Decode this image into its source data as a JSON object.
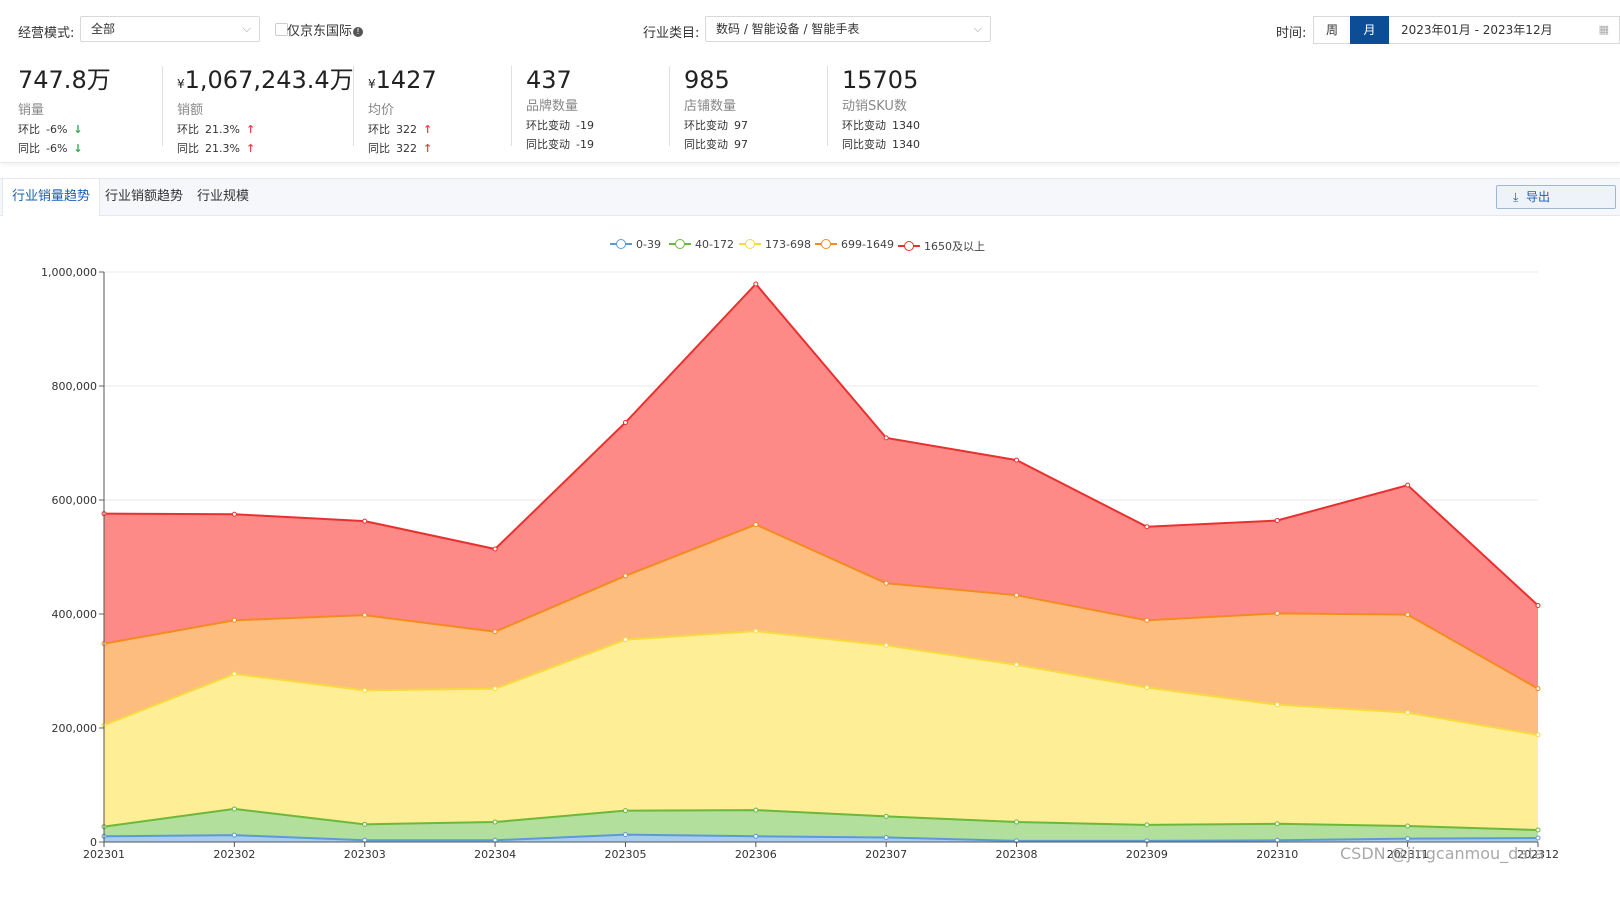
{
  "filters": {
    "mode_label": "经营模式:",
    "mode_value": "全部",
    "jd_intl_label": "仅京东国际",
    "category_label": "行业类目:",
    "category_value": "数码 / 智能设备 / 智能手表",
    "time_label": "时间:",
    "week_label": "周",
    "month_label": "月",
    "date_range": "2023年01月 - 2023年12月"
  },
  "metrics": [
    {
      "value": "747.8万",
      "currency": "",
      "name": "销量",
      "r1_label": "环比",
      "r1_value": "-6%",
      "r1_arrow": "↓",
      "r2_label": "同比",
      "r2_value": "-6%",
      "r2_arrow": "↓"
    },
    {
      "value": "1,067,243.4万",
      "currency": "¥",
      "name": "销额",
      "r1_label": "环比",
      "r1_value": "21.3%",
      "r1_arrow": "↑",
      "r2_label": "同比",
      "r2_value": "21.3%",
      "r2_arrow": "↑"
    },
    {
      "value": "1427",
      "currency": "¥",
      "name": "均价",
      "r1_label": "环比",
      "r1_value": "322",
      "r1_arrow": "↑",
      "r2_label": "同比",
      "r2_value": "322",
      "r2_arrow": "↑"
    },
    {
      "value": "437",
      "currency": "",
      "name": "品牌数量",
      "r1_label": "环比变动",
      "r1_value": "-19",
      "r1_arrow": "",
      "r2_label": "同比变动",
      "r2_value": "-19",
      "r2_arrow": ""
    },
    {
      "value": "985",
      "currency": "",
      "name": "店铺数量",
      "r1_label": "环比变动",
      "r1_value": "97",
      "r1_arrow": "",
      "r2_label": "同比变动",
      "r2_value": "97",
      "r2_arrow": ""
    },
    {
      "value": "15705",
      "currency": "",
      "name": "动销SKU数",
      "r1_label": "环比变动",
      "r1_value": "1340",
      "r1_arrow": "",
      "r2_label": "同比变动",
      "r2_value": "1340",
      "r2_arrow": ""
    }
  ],
  "tabs": [
    "行业销量趋势",
    "行业销额趋势",
    "行业规模"
  ],
  "export_label": "导出",
  "watermark": "CSDN @jingcanmou_data",
  "chart_data": {
    "type": "area",
    "stacked": true,
    "title": "",
    "categories": [
      "202301",
      "202302",
      "202303",
      "202304",
      "202305",
      "202306",
      "202307",
      "202308",
      "202309",
      "202310",
      "202311",
      "202312"
    ],
    "ylim": [
      0,
      1000000
    ],
    "yticks": [
      0,
      200000,
      400000,
      600000,
      800000,
      1000000
    ],
    "ytick_labels": [
      "0",
      "200,000",
      "400,000",
      "600,000",
      "800,000",
      "1,000,000"
    ],
    "legend_position": "top-center",
    "series": [
      {
        "name": "0-39",
        "color": "#5b9bd5",
        "fill": "#a9cdef",
        "values": [
          10000,
          12000,
          3000,
          3000,
          13000,
          10000,
          8000,
          2000,
          2000,
          3000,
          6000,
          7000
        ]
      },
      {
        "name": "40-172",
        "color": "#6cb83a",
        "fill": "#b3df9d",
        "values": [
          17000,
          46000,
          28000,
          32000,
          42000,
          46000,
          37000,
          33000,
          28000,
          29000,
          22000,
          14000
        ]
      },
      {
        "name": "173-698",
        "color": "#f7d941",
        "fill": "#feee96",
        "values": [
          178000,
          237000,
          235000,
          234000,
          300000,
          314000,
          300000,
          276000,
          241000,
          209000,
          199000,
          167000
        ]
      },
      {
        "name": "699-1649",
        "color": "#f58a1f",
        "fill": "#fdbd7e",
        "values": [
          143000,
          94000,
          132000,
          100000,
          112000,
          187000,
          109000,
          122000,
          118000,
          160000,
          172000,
          81000
        ]
      },
      {
        "name": "1650及以上",
        "color": "#e8312f",
        "fill": "#fe8a87",
        "values": [
          228000,
          186000,
          165000,
          145000,
          269000,
          422000,
          255000,
          237000,
          164000,
          163000,
          227000,
          146000
        ]
      }
    ]
  }
}
